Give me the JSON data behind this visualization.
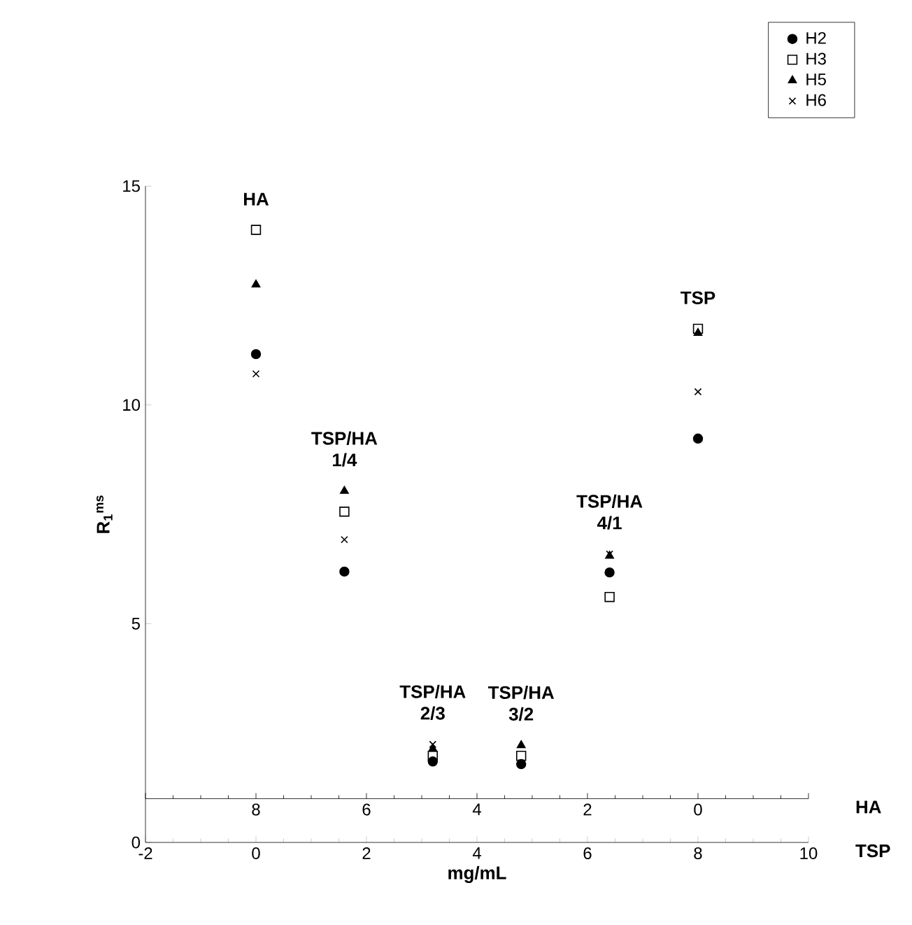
{
  "chart_data": {
    "type": "scatter",
    "xlabel": "mg/mL",
    "ylabel": "R$_{1}$$^{ms}$",
    "x2label": "HA",
    "xlim": [
      -2,
      10
    ],
    "xticks": [
      -2,
      0,
      2,
      4,
      6,
      8,
      10
    ],
    "ylim": [
      0,
      15
    ],
    "yticks": [
      0,
      5,
      10,
      15
    ],
    "x2lim": [
      10,
      -2
    ],
    "x2ticks": [
      8,
      6,
      4,
      2,
      0
    ],
    "x": [
      0,
      1.6,
      3.2,
      4.8,
      6.4,
      8
    ],
    "series": [
      {
        "name": "H2",
        "color": "#000000",
        "marker": "circle",
        "values": [
          11.16,
          6.19,
          1.85,
          1.79,
          6.17,
          9.23
        ]
      },
      {
        "name": "H3",
        "color": "#000000",
        "marker": "square",
        "values": [
          14.0,
          7.56,
          1.98,
          1.98,
          5.61,
          11.74
        ]
      },
      {
        "name": "H5",
        "color": "#000000",
        "marker": "triangle",
        "values": [
          12.75,
          8.03,
          2.14,
          2.22,
          6.55,
          11.64
        ]
      },
      {
        "name": "H6",
        "color": "#000000",
        "marker": "cross",
        "values": [
          10.71,
          6.92,
          2.24,
          null,
          6.59,
          10.3
        ]
      }
    ],
    "legend": "top right",
    "grid": false,
    "annotations": [
      "HA",
      "TSP/HA 1/4",
      "TSP/HA 2/3",
      "TSP/HA 3/2",
      "TSP/HA 4/1",
      "TSP",
      "TSP"
    ]
  }
}
